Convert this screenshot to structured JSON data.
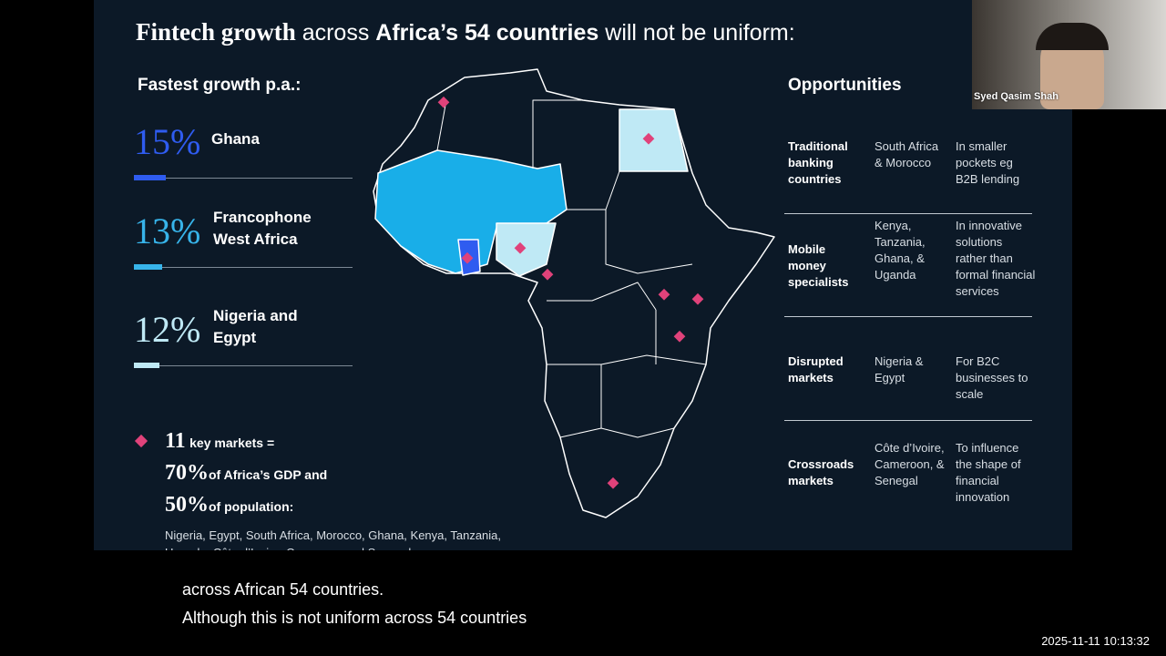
{
  "slide": {
    "title_parts": [
      "Fintech growth",
      "across",
      "Africa’s 54 countries",
      "will not be uniform:"
    ],
    "growth_heading": "Fastest growth p.a.:",
    "growth": [
      {
        "rate": "15%",
        "label": "Ghana"
      },
      {
        "rate": "13%",
        "label": "Francophone West Africa"
      },
      {
        "rate": "12%",
        "label": "Nigeria and Egypt"
      }
    ],
    "key_markets": {
      "count": "11",
      "count_label": "key markets =",
      "gdp": "70%",
      "gdp_label": "of Africa’s GDP and",
      "pop": "50%",
      "pop_label": "of population:",
      "countries": "Nigeria, Egypt, South Africa, Morocco, Ghana, Kenya, Tanzania, Uganda, Côte d’Ivoire, Cameroon and Senegal"
    },
    "opportunities": {
      "heading": "Opportunities",
      "rows": [
        [
          "Traditional banking countries",
          "South Africa & Morocco",
          "In smaller pockets eg B2B lending"
        ],
        [
          "Mobile money specialists",
          "Kenya, Tanzania, Ghana, & Uganda",
          "In innovative solutions rather than formal financial services"
        ],
        [
          "Disrupted markets",
          "Nigeria & Egypt",
          "For B2C businesses to scale"
        ],
        [
          "Crossroads markets",
          "Côte d’Ivoire, Cameroon, & Senegal",
          "To influence the shape of financial innovation"
        ]
      ]
    }
  },
  "webcam": {
    "name": "Syed Qasim Shah"
  },
  "captions": [
    "across African 54 countries.",
    "Although this is not uniform across 54 countries"
  ],
  "timestamp": "2025-11-11 10:13:32"
}
